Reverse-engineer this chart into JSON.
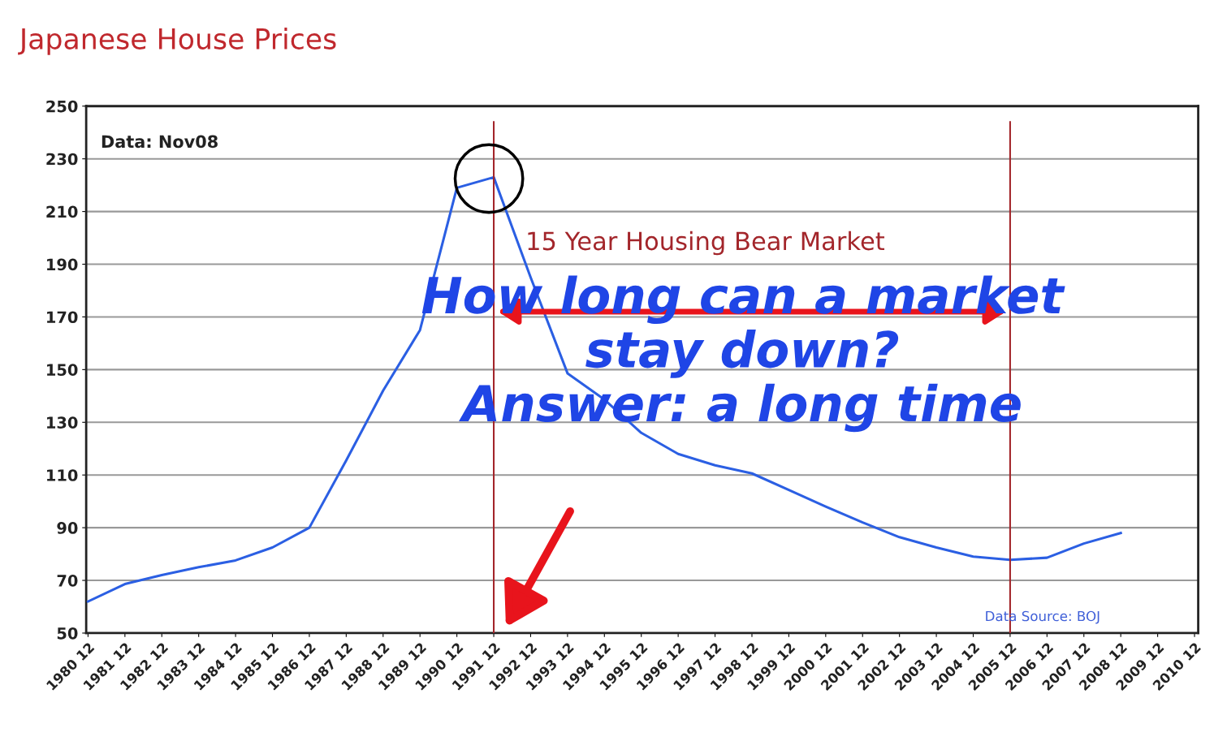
{
  "chart_data": {
    "type": "line",
    "title": "Japanese House Prices",
    "categories": [
      "1980 12",
      "1981 12",
      "1982 12",
      "1983 12",
      "1984 12",
      "1985 12",
      "1986 12",
      "1987 12",
      "1988 12",
      "1989 12",
      "1990 12",
      "1991 12",
      "1992 12",
      "1993 12",
      "1994 12",
      "1995 12",
      "1996 12",
      "1997 12",
      "1998 12",
      "1999 12",
      "2000 12",
      "2001 12",
      "2002 12",
      "2003 12",
      "2004 12",
      "2005 12",
      "2006 12",
      "2007 12",
      "2008 12",
      "2009 12",
      "2010 12"
    ],
    "series": [
      {
        "color": "#2b5fe3",
        "values": [
          62,
          68.6,
          72,
          75,
          77.6,
          82.5,
          90,
          115.5,
          142,
          165,
          219,
          223,
          185,
          148.6,
          138.6,
          126,
          118,
          113.7,
          110.6,
          104.3,
          98,
          92,
          86.4,
          82.5,
          79,
          77.8,
          78.6,
          84,
          88,
          null,
          null
        ]
      }
    ],
    "ylim": [
      50,
      250
    ],
    "yticks": [
      50,
      70,
      90,
      110,
      130,
      150,
      170,
      190,
      210,
      230,
      250
    ],
    "grid": "y",
    "legend": false,
    "marker": "none",
    "line_style": "solid",
    "ref_lines": [
      {
        "axis": "x",
        "value": "1991 12",
        "color": "#a3262b"
      },
      {
        "axis": "x",
        "value": "2005 12",
        "color": "#a3262b"
      }
    ],
    "annotations": [
      "Data: Nov08",
      "15 Year Housing Bear Market",
      "How long can a market\nstay down?\nAnswer: a long time",
      "Data Source: BOJ"
    ]
  }
}
